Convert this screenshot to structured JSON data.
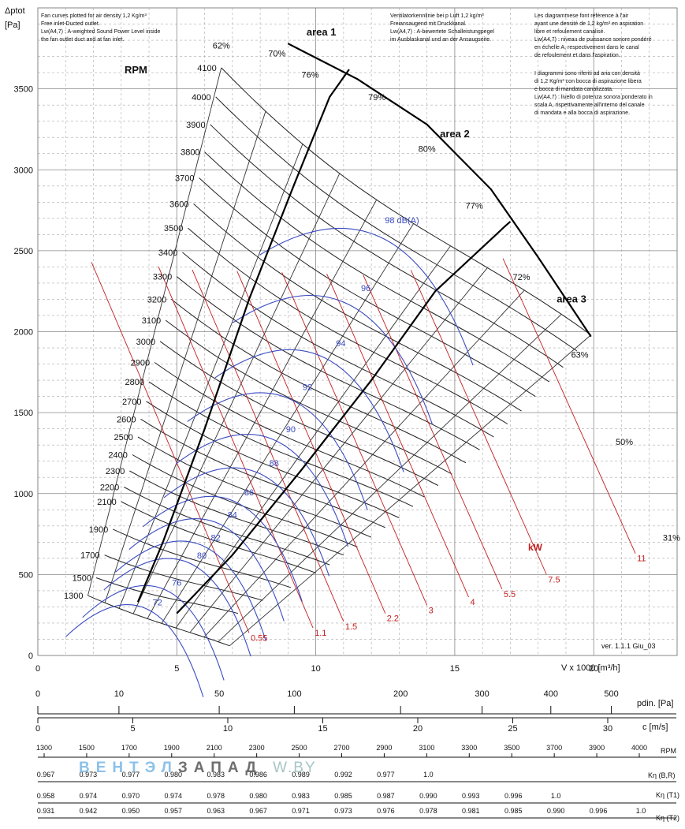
{
  "header": {
    "yaxis_symbol": "Δptot",
    "yaxis_unit": "[Pa]",
    "xaxis_label": "V x 1000 [m³/h]",
    "rpm_title": "RPM",
    "version": "ver. 1.1.1 Giu_03"
  },
  "notes": {
    "en": [
      "Fan curves plotted for air density 1,2 Kg/m³",
      "Free inlet-Ducted outlet.",
      "Lw(A4,7) : A-weighted Sound Power Level inside",
      "the fan outlet duct and at fan inlet."
    ],
    "de": [
      "Ventilatorkennlinie bei p Luft 1,2 kg/m³",
      "Freiansaugend mit Druckkanal.",
      "Lw(A4,7) : A-bewertete Schalleistungpegel",
      "im Ausblaskanal und an der Ansaugseite."
    ],
    "fr": [
      "Les diagrammese font référence à l'air",
      "ayant une densité de 1,2 kg/m³ en aspiration",
      "libre et refoulement canalisé.",
      "Lw(A4,7) : niveau de puissance sonore pondéré",
      "en échelle A, respectivement dans le canal",
      "de refoulement et dans l'aspiration."
    ],
    "it": [
      "I diagrammi sono riferiti ad aria con densità",
      "di 1,2 Kg/m³ con bocca di aspirazione libera",
      "e bocca di mandata canalizzata.",
      "Lw(A4,7) : livello di potenza sonora ponderato in",
      "scala A, rispettivamente all'interno del canale",
      "di mandata e alla bocca di aspirazione."
    ]
  },
  "areas": [
    "area 1",
    "area 2",
    "area 3"
  ],
  "sound_unit_label": "98 dB(A)",
  "power_unit_label": "kW",
  "chart_data": {
    "type": "line",
    "title": "",
    "xlabel": "V x 1000 [m³/h]",
    "ylabel": "Δptot [Pa]",
    "xlim": [
      0,
      23
    ],
    "ylim": [
      0,
      4000
    ],
    "x_ticks": [
      0,
      5,
      10,
      15,
      20
    ],
    "y_ticks": [
      0,
      500,
      1000,
      1500,
      2000,
      2500,
      3000,
      3500
    ],
    "grid": true,
    "rpm_curves": [
      {
        "rpm": 4100,
        "x_start": 6.6,
        "p_start": 3630,
        "x_end": 19.9,
        "p_end": 1980
      },
      {
        "rpm": 4000,
        "x_start": 6.4,
        "p_start": 3450,
        "x_end": 19.4,
        "p_end": 1880
      },
      {
        "rpm": 3900,
        "x_start": 6.2,
        "p_start": 3280,
        "x_end": 18.9,
        "p_end": 1780
      },
      {
        "rpm": 3800,
        "x_start": 6.0,
        "p_start": 3110,
        "x_end": 18.4,
        "p_end": 1690
      },
      {
        "rpm": 3700,
        "x_start": 5.8,
        "p_start": 2950,
        "x_end": 17.9,
        "p_end": 1600
      },
      {
        "rpm": 3600,
        "x_start": 5.6,
        "p_start": 2790,
        "x_end": 17.4,
        "p_end": 1510
      },
      {
        "rpm": 3500,
        "x_start": 5.4,
        "p_start": 2640,
        "x_end": 16.9,
        "p_end": 1430
      },
      {
        "rpm": 3400,
        "x_start": 5.2,
        "p_start": 2490,
        "x_end": 16.4,
        "p_end": 1350
      },
      {
        "rpm": 3300,
        "x_start": 5.0,
        "p_start": 2340,
        "x_end": 15.9,
        "p_end": 1270
      },
      {
        "rpm": 3200,
        "x_start": 4.8,
        "p_start": 2200,
        "x_end": 15.4,
        "p_end": 1190
      },
      {
        "rpm": 3100,
        "x_start": 4.6,
        "p_start": 2070,
        "x_end": 14.9,
        "p_end": 1120
      },
      {
        "rpm": 3000,
        "x_start": 4.4,
        "p_start": 1940,
        "x_end": 14.4,
        "p_end": 1050
      },
      {
        "rpm": 2900,
        "x_start": 4.2,
        "p_start": 1810,
        "x_end": 13.9,
        "p_end": 980
      },
      {
        "rpm": 2800,
        "x_start": 4.0,
        "p_start": 1690,
        "x_end": 13.5,
        "p_end": 920
      },
      {
        "rpm": 2700,
        "x_start": 3.9,
        "p_start": 1570,
        "x_end": 13.0,
        "p_end": 850
      },
      {
        "rpm": 2600,
        "x_start": 3.7,
        "p_start": 1460,
        "x_end": 12.5,
        "p_end": 790
      },
      {
        "rpm": 2500,
        "x_start": 3.6,
        "p_start": 1350,
        "x_end": 12.0,
        "p_end": 730
      },
      {
        "rpm": 2400,
        "x_start": 3.4,
        "p_start": 1240,
        "x_end": 11.5,
        "p_end": 670
      },
      {
        "rpm": 2300,
        "x_start": 3.3,
        "p_start": 1140,
        "x_end": 11.0,
        "p_end": 620
      },
      {
        "rpm": 2200,
        "x_start": 3.1,
        "p_start": 1040,
        "x_end": 10.5,
        "p_end": 560
      },
      {
        "rpm": 2100,
        "x_start": 3.0,
        "p_start": 950,
        "x_end": 10.0,
        "p_end": 510
      },
      {
        "rpm": 1900,
        "x_start": 2.7,
        "p_start": 780,
        "x_end": 9.1,
        "p_end": 420
      },
      {
        "rpm": 1700,
        "x_start": 2.4,
        "p_start": 620,
        "x_end": 8.1,
        "p_end": 340
      },
      {
        "rpm": 1500,
        "x_start": 2.1,
        "p_start": 480,
        "x_end": 7.2,
        "p_end": 260
      },
      {
        "rpm": 1300,
        "x_start": 1.8,
        "p_start": 370,
        "x_end": 6.9,
        "p_end": 60
      }
    ],
    "efficiency_labels": [
      {
        "label": "62%",
        "x": 6.6,
        "p": 3750
      },
      {
        "label": "70%",
        "x": 8.6,
        "p": 3700
      },
      {
        "label": "76%",
        "x": 9.8,
        "p": 3570
      },
      {
        "label": "79%",
        "x": 12.2,
        "p": 3430
      },
      {
        "label": "80%",
        "x": 14.0,
        "p": 3110
      },
      {
        "label": "77%",
        "x": 15.7,
        "p": 2760
      },
      {
        "label": "72%",
        "x": 17.4,
        "p": 2320
      },
      {
        "label": "63%",
        "x": 19.5,
        "p": 1840
      },
      {
        "label": "50%",
        "x": 21.1,
        "p": 1300
      },
      {
        "label": "31%",
        "x": 22.8,
        "p": 710
      }
    ],
    "area_labels": [
      {
        "label": "area 1",
        "x": 10.2,
        "p": 3830
      },
      {
        "label": "area 2",
        "x": 15.0,
        "p": 3200
      },
      {
        "label": "area 3",
        "x": 19.2,
        "p": 2180
      }
    ],
    "sound_levels_dBA": [
      {
        "label": "98 dB(A)",
        "x": 13.1,
        "p": 2670
      },
      {
        "label": "96",
        "x": 11.8,
        "p": 2250
      },
      {
        "label": "94",
        "x": 10.9,
        "p": 1910
      },
      {
        "label": "92",
        "x": 9.7,
        "p": 1640
      },
      {
        "label": "90",
        "x": 9.1,
        "p": 1380
      },
      {
        "label": "88",
        "x": 8.5,
        "p": 1170
      },
      {
        "label": "86",
        "x": 7.6,
        "p": 990
      },
      {
        "label": "84",
        "x": 7.0,
        "p": 850
      },
      {
        "label": "82",
        "x": 6.4,
        "p": 710
      },
      {
        "label": "80",
        "x": 5.9,
        "p": 600
      },
      {
        "label": "76",
        "x": 5.0,
        "p": 430
      },
      {
        "label": "72",
        "x": 4.3,
        "p": 310
      }
    ],
    "power_kW": [
      {
        "label": "0.55",
        "x": 7.6,
        "p": 140
      },
      {
        "label": "1.1",
        "x": 9.9,
        "p": 170
      },
      {
        "label": "1.5",
        "x": 11.0,
        "p": 210
      },
      {
        "label": "2.2",
        "x": 12.5,
        "p": 260
      },
      {
        "label": "3",
        "x": 14.0,
        "p": 310
      },
      {
        "label": "4",
        "x": 15.5,
        "p": 360
      },
      {
        "label": "5.5",
        "x": 16.7,
        "p": 410
      },
      {
        "label": "7.5",
        "x": 18.3,
        "p": 500
      },
      {
        "label": "11",
        "x": 21.5,
        "p": 630
      }
    ],
    "secondary_scales": {
      "pdin_label": "pdin. [Pa]",
      "pdin_ticks": [
        {
          "label": "0",
          "v": 0
        },
        {
          "label": "10",
          "v": 10
        },
        {
          "label": "50",
          "v": 50
        },
        {
          "label": "100",
          "v": 100
        },
        {
          "label": "200",
          "v": 200
        },
        {
          "label": "300",
          "v": 300
        },
        {
          "label": "400",
          "v": 400
        },
        {
          "label": "500",
          "v": 500
        }
      ],
      "c_label": "c [m/s]",
      "c_ticks": [
        "0",
        "5",
        "10",
        "15",
        "20",
        "25",
        "30"
      ],
      "rpm_label": "RPM",
      "rpm_ticks": [
        "1300",
        "1500",
        "1700",
        "1900",
        "2100",
        "2300",
        "2500",
        "2700",
        "2900",
        "3100",
        "3300",
        "3500",
        "3700",
        "3900",
        "4000"
      ],
      "k_rows": [
        {
          "label": "Kη (B,R)",
          "values": [
            "0.967",
            "0.973",
            "0.977",
            "0.980",
            "0.983",
            "0.986",
            "0.989",
            "0.992",
            "0.977",
            "1.0"
          ]
        },
        {
          "label": "Kη (T1)",
          "values": [
            "0.958",
            "0.974",
            "0.970",
            "0.974",
            "0.978",
            "0.980",
            "0.983",
            "0.985",
            "0.987",
            "0.990",
            "0.993",
            "0.996",
            "1.0"
          ]
        },
        {
          "label": "Kη (T2)",
          "values": [
            "0.931",
            "0.942",
            "0.950",
            "0.957",
            "0.963",
            "0.967",
            "0.971",
            "0.973",
            "0.976",
            "0.978",
            "0.981",
            "0.985",
            "0.990",
            "0.996",
            "1.0"
          ]
        }
      ]
    }
  },
  "watermark": {
    "part1": "ВЕНТЭЛ",
    "part2": "ЗАПАД",
    "part3": "W.BY"
  }
}
